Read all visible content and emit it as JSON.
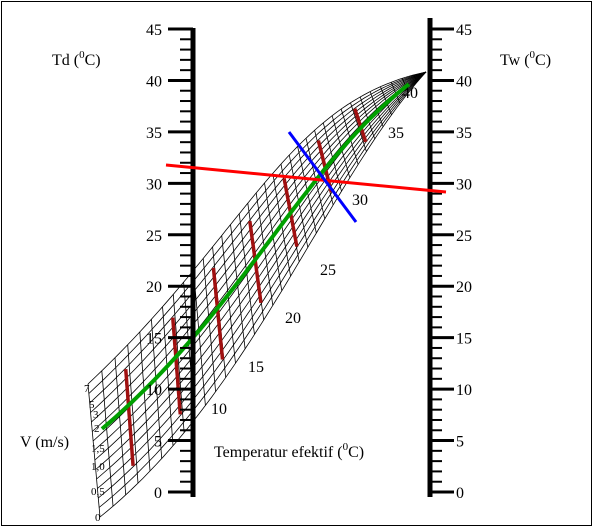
{
  "axes": {
    "td_label": "Td (0C)",
    "td_label_main": "Td (",
    "td_label_sup": "0",
    "td_label_end": "C)",
    "tw_label_main": "Tw (",
    "tw_label_sup": "0",
    "tw_label_end": "C)",
    "v_label": "V (m/s)",
    "te_label_main": "Temperatur efektif (",
    "te_label_sup": "0",
    "te_label_end": "C)"
  },
  "td_ticks": [
    "0",
    "5",
    "10",
    "15",
    "20",
    "25",
    "30",
    "35",
    "40",
    "45"
  ],
  "tw_ticks": [
    "0",
    "5",
    "10",
    "15",
    "20",
    "25",
    "30",
    "35",
    "40",
    "45"
  ],
  "te_ticks": [
    "10",
    "15",
    "20",
    "25",
    "30",
    "35",
    "40"
  ],
  "v_ticks": [
    "0",
    "0,5",
    "1,0",
    "1,5",
    "2",
    "3",
    "5",
    "7"
  ],
  "colors": {
    "red_line": "#ff0000",
    "blue_line": "#0000ff",
    "green_line": "#00a000",
    "dark_red": "#a01010",
    "grid": "#000000"
  }
}
